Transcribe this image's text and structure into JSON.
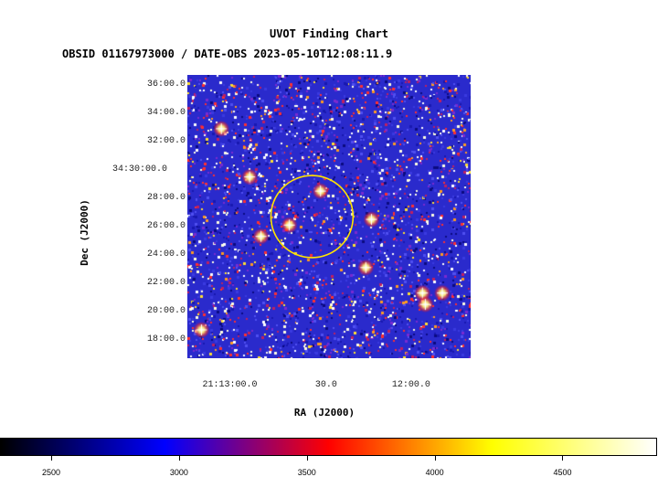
{
  "header": {
    "title": "UVOT Finding Chart",
    "subtitle": "OBSID 01167973000 / DATE-OBS 2023-05-10T12:08:11.9"
  },
  "axes": {
    "xlabel": "RA (J2000)",
    "ylabel": "Dec (J2000)",
    "ra_ticks": [
      {
        "label": "21:13:00.0",
        "frac": 0.15
      },
      {
        "label": "30.0",
        "frac": 0.49
      },
      {
        "label": "12:00.0",
        "frac": 0.79
      }
    ],
    "dec_ticks": [
      {
        "label": "36:00.0",
        "frac": 0.035
      },
      {
        "label": "34:00.0",
        "frac": 0.135
      },
      {
        "label": "32:00.0",
        "frac": 0.235
      },
      {
        "label": "34:30:00.0",
        "frac": 0.335
      },
      {
        "label": "28:00.0",
        "frac": 0.435
      },
      {
        "label": "26:00.0",
        "frac": 0.535
      },
      {
        "label": "24:00.0",
        "frac": 0.635
      },
      {
        "label": "22:00.0",
        "frac": 0.735
      },
      {
        "label": "20:00.0",
        "frac": 0.835
      },
      {
        "label": "18:00.0",
        "frac": 0.935
      }
    ]
  },
  "colorbar": {
    "min": 2300,
    "max": 4870,
    "ticks": [
      {
        "label": "2500",
        "value": 2500
      },
      {
        "label": "3000",
        "value": 3000
      },
      {
        "label": "3500",
        "value": 3500
      },
      {
        "label": "4000",
        "value": 4000
      },
      {
        "label": "4500",
        "value": 4500
      }
    ],
    "colors": [
      "#000000",
      "#0000ff",
      "#ff0000",
      "#ffff00",
      "#ffffff"
    ]
  },
  "image": {
    "background_color": "#2a2acc",
    "region_color": "#ffe400",
    "region_center": [
      0.44,
      0.5
    ],
    "region_radius": 0.145,
    "bright_sources": [
      [
        0.12,
        0.19
      ],
      [
        0.36,
        0.53
      ],
      [
        0.65,
        0.51
      ],
      [
        0.26,
        0.57
      ],
      [
        0.83,
        0.77
      ],
      [
        0.9,
        0.77
      ],
      [
        0.84,
        0.81
      ],
      [
        0.05,
        0.9
      ],
      [
        0.63,
        0.68
      ],
      [
        0.47,
        0.41
      ],
      [
        0.22,
        0.36
      ]
    ]
  }
}
